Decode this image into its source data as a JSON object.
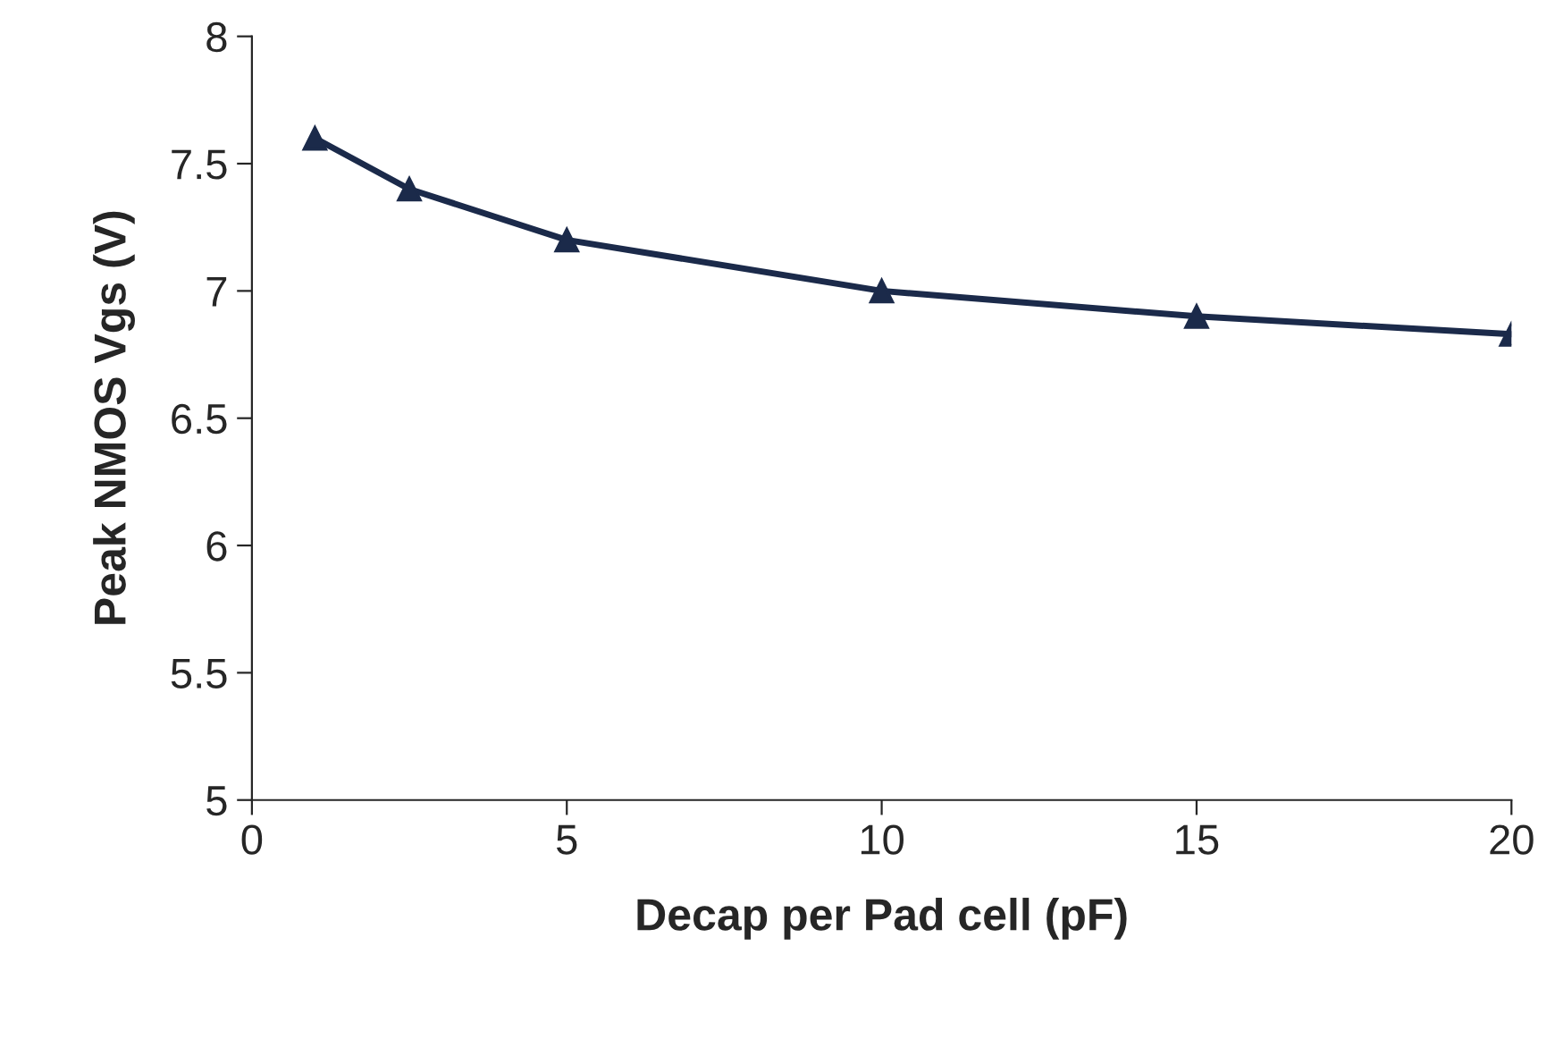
{
  "chart_data": {
    "type": "line",
    "xlabel": "Decap per Pad cell (pF)",
    "ylabel": "Peak NMOS Vgs (V)",
    "x": [
      1,
      2.5,
      5,
      10,
      15,
      20
    ],
    "series": [
      {
        "color": "#1b2a4a",
        "values": [
          7.6,
          7.4,
          7.2,
          7.0,
          6.9,
          6.83
        ]
      }
    ],
    "xlim": [
      0,
      20
    ],
    "xticks": [
      0,
      5,
      10,
      15,
      20
    ],
    "ylim": [
      5,
      8
    ],
    "yticks": [
      5,
      5.5,
      6,
      6.5,
      7,
      7.5,
      8
    ],
    "marker": "triangle",
    "line_style": "solid",
    "grid": false,
    "legend": false
  }
}
